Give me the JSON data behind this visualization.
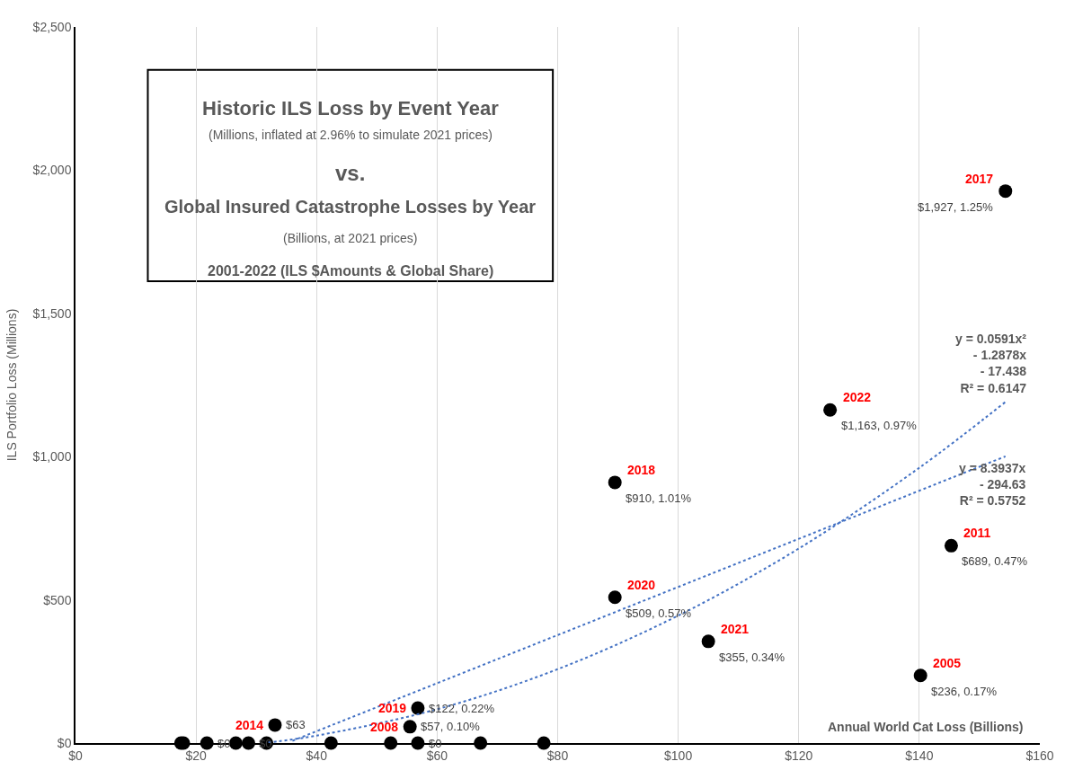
{
  "chart_data": {
    "type": "scatter",
    "title": "Historic ILS Loss by Event Year",
    "xlabel": "Annual World Cat Loss (Billions)",
    "ylabel": "ILS Portfolio Loss (Millions)",
    "annotations": [
      "(Millions, inflated at 2.96% to simulate 2021 prices)",
      "vs.",
      "Global Insured Catastrophe Losses by Year",
      "(Billions, at 2021 prices)",
      "2001-2022 (ILS $Amounts & Global Share)",
      {
        "text": "2014",
        "x": 33.1,
        "y": 63
      },
      {
        "text": "2008",
        "x": 55.5,
        "y": 57
      },
      {
        "text": "2019",
        "x": 56.8,
        "y": 122
      },
      {
        "text": "2018",
        "x": 89.5,
        "y": 910
      },
      {
        "text": "2020",
        "x": 89.5,
        "y": 509
      },
      {
        "text": "2021",
        "x": 105,
        "y": 355
      },
      {
        "text": "2022",
        "x": 125.2,
        "y": 1163
      },
      {
        "text": "2005",
        "x": 140.2,
        "y": 236
      },
      {
        "text": "2011",
        "x": 145.3,
        "y": 689
      },
      {
        "text": "2017",
        "x": 154.3,
        "y": 1927
      },
      {
        "text": "y = 0.0591x²\n- 1.2878x\n- 17.438\nR² = 0.6147",
        "x": 154.3,
        "y": 1190.9
      },
      {
        "text": "y = 8.3937x\n- 294.63\nR² = 0.5752",
        "x": 154.3,
        "y": 1000.6
      }
    ],
    "series": [
      {
        "color": "#000000",
        "marker": "circle",
        "x": [
          17.5,
          17.9,
          21.8,
          26.6,
          28.7,
          31.7,
          33.1,
          42.4,
          52.3,
          55.5,
          56.8,
          56.8,
          67.2,
          77.7,
          89.5,
          89.5,
          105,
          125.2,
          140.2,
          145.3,
          154.3
        ],
        "values": [
          0,
          0,
          0,
          0,
          0,
          0,
          63,
          0,
          0,
          57,
          0,
          122,
          0,
          0,
          910,
          509,
          355,
          1163,
          236,
          689,
          1927
        ],
        "value_labels": [
          null,
          null,
          "$0",
          null,
          "$0",
          null,
          "$63",
          null,
          null,
          "$57, 0.10%",
          "$0",
          "$122, 0.22%",
          null,
          null,
          "$910, 1.01%",
          "$509, 0.57%",
          "$355, 0.34%",
          "$1,163, 0.97%",
          "$236, 0.17%",
          "$689, 0.47%",
          "$1,927, 1.25%"
        ]
      },
      {
        "type": "line",
        "color": "#4472c4",
        "line_style": "dotted",
        "x": [
          32,
          40,
          60,
          80,
          100,
          120,
          140,
          154.3
        ],
        "values": [
          2,
          26,
          118,
          258,
          445,
          679,
          961,
          1191
        ]
      },
      {
        "type": "line",
        "color": "#4472c4",
        "line_style": "dotted",
        "x": [
          36,
          60,
          100,
          154.3
        ],
        "values": [
          8,
          209,
          545,
          1001
        ]
      }
    ],
    "xlim": [
      0,
      160
    ],
    "ylim": [
      0,
      2500
    ],
    "xticks": [
      {
        "value": 0,
        "label": "$0"
      },
      {
        "value": 20,
        "label": "$20"
      },
      {
        "value": 40,
        "label": "$40"
      },
      {
        "value": 60,
        "label": "$60"
      },
      {
        "value": 80,
        "label": "$80"
      },
      {
        "value": 100,
        "label": "$100"
      },
      {
        "value": 120,
        "label": "$120"
      },
      {
        "value": 140,
        "label": "$140"
      },
      {
        "value": 160,
        "label": "$160"
      }
    ],
    "yticks": [
      {
        "value": 0,
        "label": "$0"
      },
      {
        "value": 500,
        "label": "$500"
      },
      {
        "value": 1000,
        "label": "$1,000"
      },
      {
        "value": 1500,
        "label": "$1,500"
      },
      {
        "value": 2000,
        "label": "$2,000"
      },
      {
        "value": 2500,
        "label": "$2,500"
      }
    ],
    "grid": "x"
  }
}
